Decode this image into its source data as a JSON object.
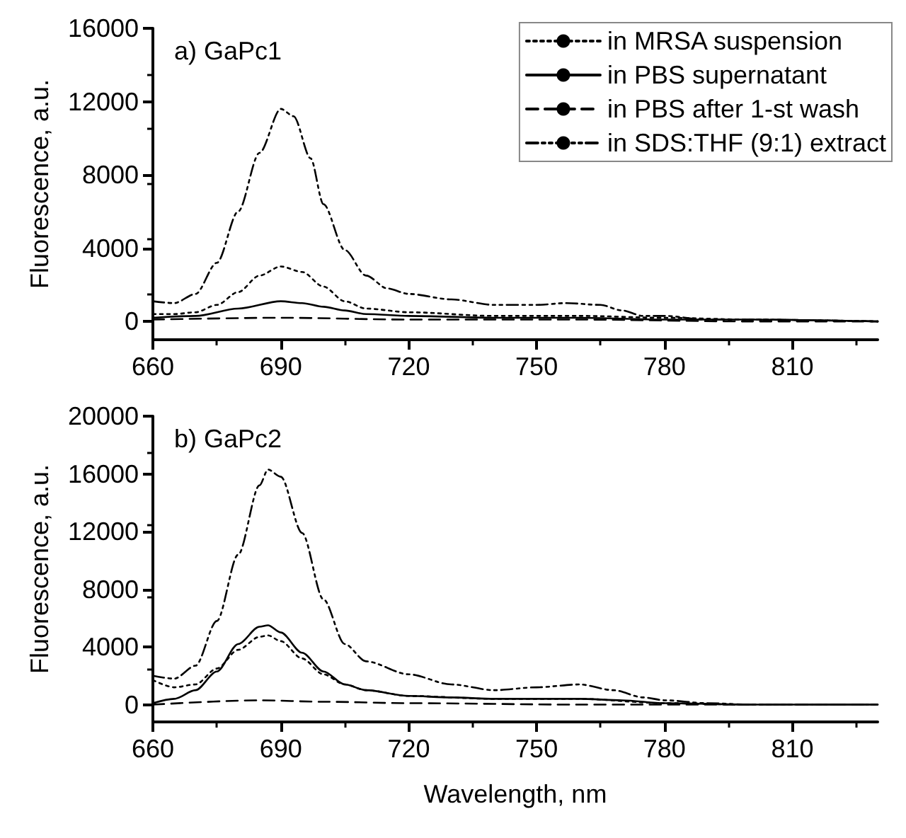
{
  "chart_data": [
    {
      "type": "line",
      "title": "a) GaPc1",
      "ylabel": "Fluorescence, a.u.",
      "xlim": [
        660,
        830
      ],
      "xticks": [
        660,
        690,
        720,
        750,
        780,
        810
      ],
      "ylim": [
        -1000,
        16000
      ],
      "yticks": [
        0,
        4000,
        8000,
        12000,
        16000
      ],
      "grid": false,
      "legend": "top right",
      "marker": "none",
      "series": [
        {
          "name": "in MRSA suspension",
          "color": "#000000",
          "line_style": "dotted",
          "x": [
            660,
            665,
            670,
            675,
            680,
            685,
            690,
            695,
            700,
            705,
            710,
            720,
            740,
            760,
            780,
            800,
            830
          ],
          "values": [
            400,
            400,
            500,
            900,
            1600,
            2500,
            3000,
            2700,
            1900,
            1100,
            700,
            500,
            300,
            300,
            200,
            100,
            0
          ]
        },
        {
          "name": "in PBS supernatant",
          "color": "#000000",
          "line_style": "solid",
          "x": [
            660,
            670,
            680,
            690,
            695,
            700,
            705,
            710,
            720,
            740,
            760,
            780,
            800,
            830
          ],
          "values": [
            200,
            300,
            700,
            1100,
            1000,
            800,
            600,
            400,
            300,
            200,
            200,
            100,
            100,
            0
          ]
        },
        {
          "name": "in PBS after 1-st wash",
          "color": "#000000",
          "line_style": "dashed",
          "x": [
            660,
            690,
            720,
            760,
            800,
            830
          ],
          "values": [
            100,
            200,
            100,
            100,
            0,
            0
          ]
        },
        {
          "name": "in SDS:THF (9:1) extract",
          "color": "#000000",
          "line_style": "dashdot",
          "x": [
            660,
            665,
            670,
            675,
            680,
            685,
            690,
            693,
            697,
            700,
            705,
            710,
            715,
            720,
            730,
            740,
            750,
            757,
            765,
            770,
            775,
            780,
            790,
            800,
            830
          ],
          "values": [
            1100,
            1000,
            1500,
            3200,
            6000,
            9200,
            11600,
            11200,
            8900,
            6400,
            3900,
            2500,
            1800,
            1500,
            1200,
            900,
            900,
            1000,
            900,
            600,
            300,
            300,
            100,
            100,
            0
          ]
        }
      ]
    },
    {
      "type": "line",
      "title": "b) GaPc2",
      "xlabel": "Wavelength, nm",
      "ylabel": "Fluorescence, a.u.",
      "xlim": [
        660,
        830
      ],
      "xticks": [
        660,
        690,
        720,
        750,
        780,
        810
      ],
      "ylim": [
        -1200,
        20000
      ],
      "yticks": [
        0,
        4000,
        8000,
        12000,
        16000,
        20000
      ],
      "grid": false,
      "legend": false,
      "marker": "none",
      "series": [
        {
          "color": "#000000",
          "line_style": "dotted",
          "x": [
            660,
            665,
            670,
            675,
            680,
            685,
            687,
            690,
            695,
            700,
            705,
            710,
            720,
            740,
            760,
            780,
            800,
            830
          ],
          "values": [
            1700,
            1200,
            1400,
            2500,
            3800,
            4700,
            4800,
            4400,
            3200,
            2100,
            1400,
            1000,
            600,
            400,
            400,
            100,
            0,
            0
          ]
        },
        {
          "color": "#000000",
          "line_style": "solid",
          "x": [
            660,
            665,
            670,
            675,
            680,
            685,
            687,
            690,
            695,
            700,
            705,
            710,
            720,
            730,
            740,
            760,
            770,
            780,
            800,
            830
          ],
          "values": [
            100,
            400,
            1000,
            2300,
            4200,
            5400,
            5500,
            5000,
            3600,
            2300,
            1400,
            1000,
            600,
            500,
            400,
            400,
            300,
            100,
            0,
            0
          ]
        },
        {
          "color": "#000000",
          "line_style": "dashed",
          "x": [
            660,
            685,
            700,
            720,
            760,
            800,
            830
          ],
          "values": [
            0,
            300,
            200,
            100,
            0,
            0,
            0
          ]
        },
        {
          "color": "#000000",
          "line_style": "dashdot",
          "x": [
            660,
            665,
            670,
            675,
            680,
            685,
            687,
            690,
            695,
            700,
            705,
            710,
            720,
            730,
            740,
            750,
            760,
            768,
            775,
            780,
            790,
            800,
            830
          ],
          "values": [
            2000,
            1800,
            2700,
            5800,
            10400,
            15200,
            16300,
            15800,
            11900,
            7300,
            4200,
            3000,
            2100,
            1400,
            1000,
            1200,
            1400,
            1000,
            500,
            300,
            100,
            0,
            0
          ]
        }
      ]
    }
  ]
}
